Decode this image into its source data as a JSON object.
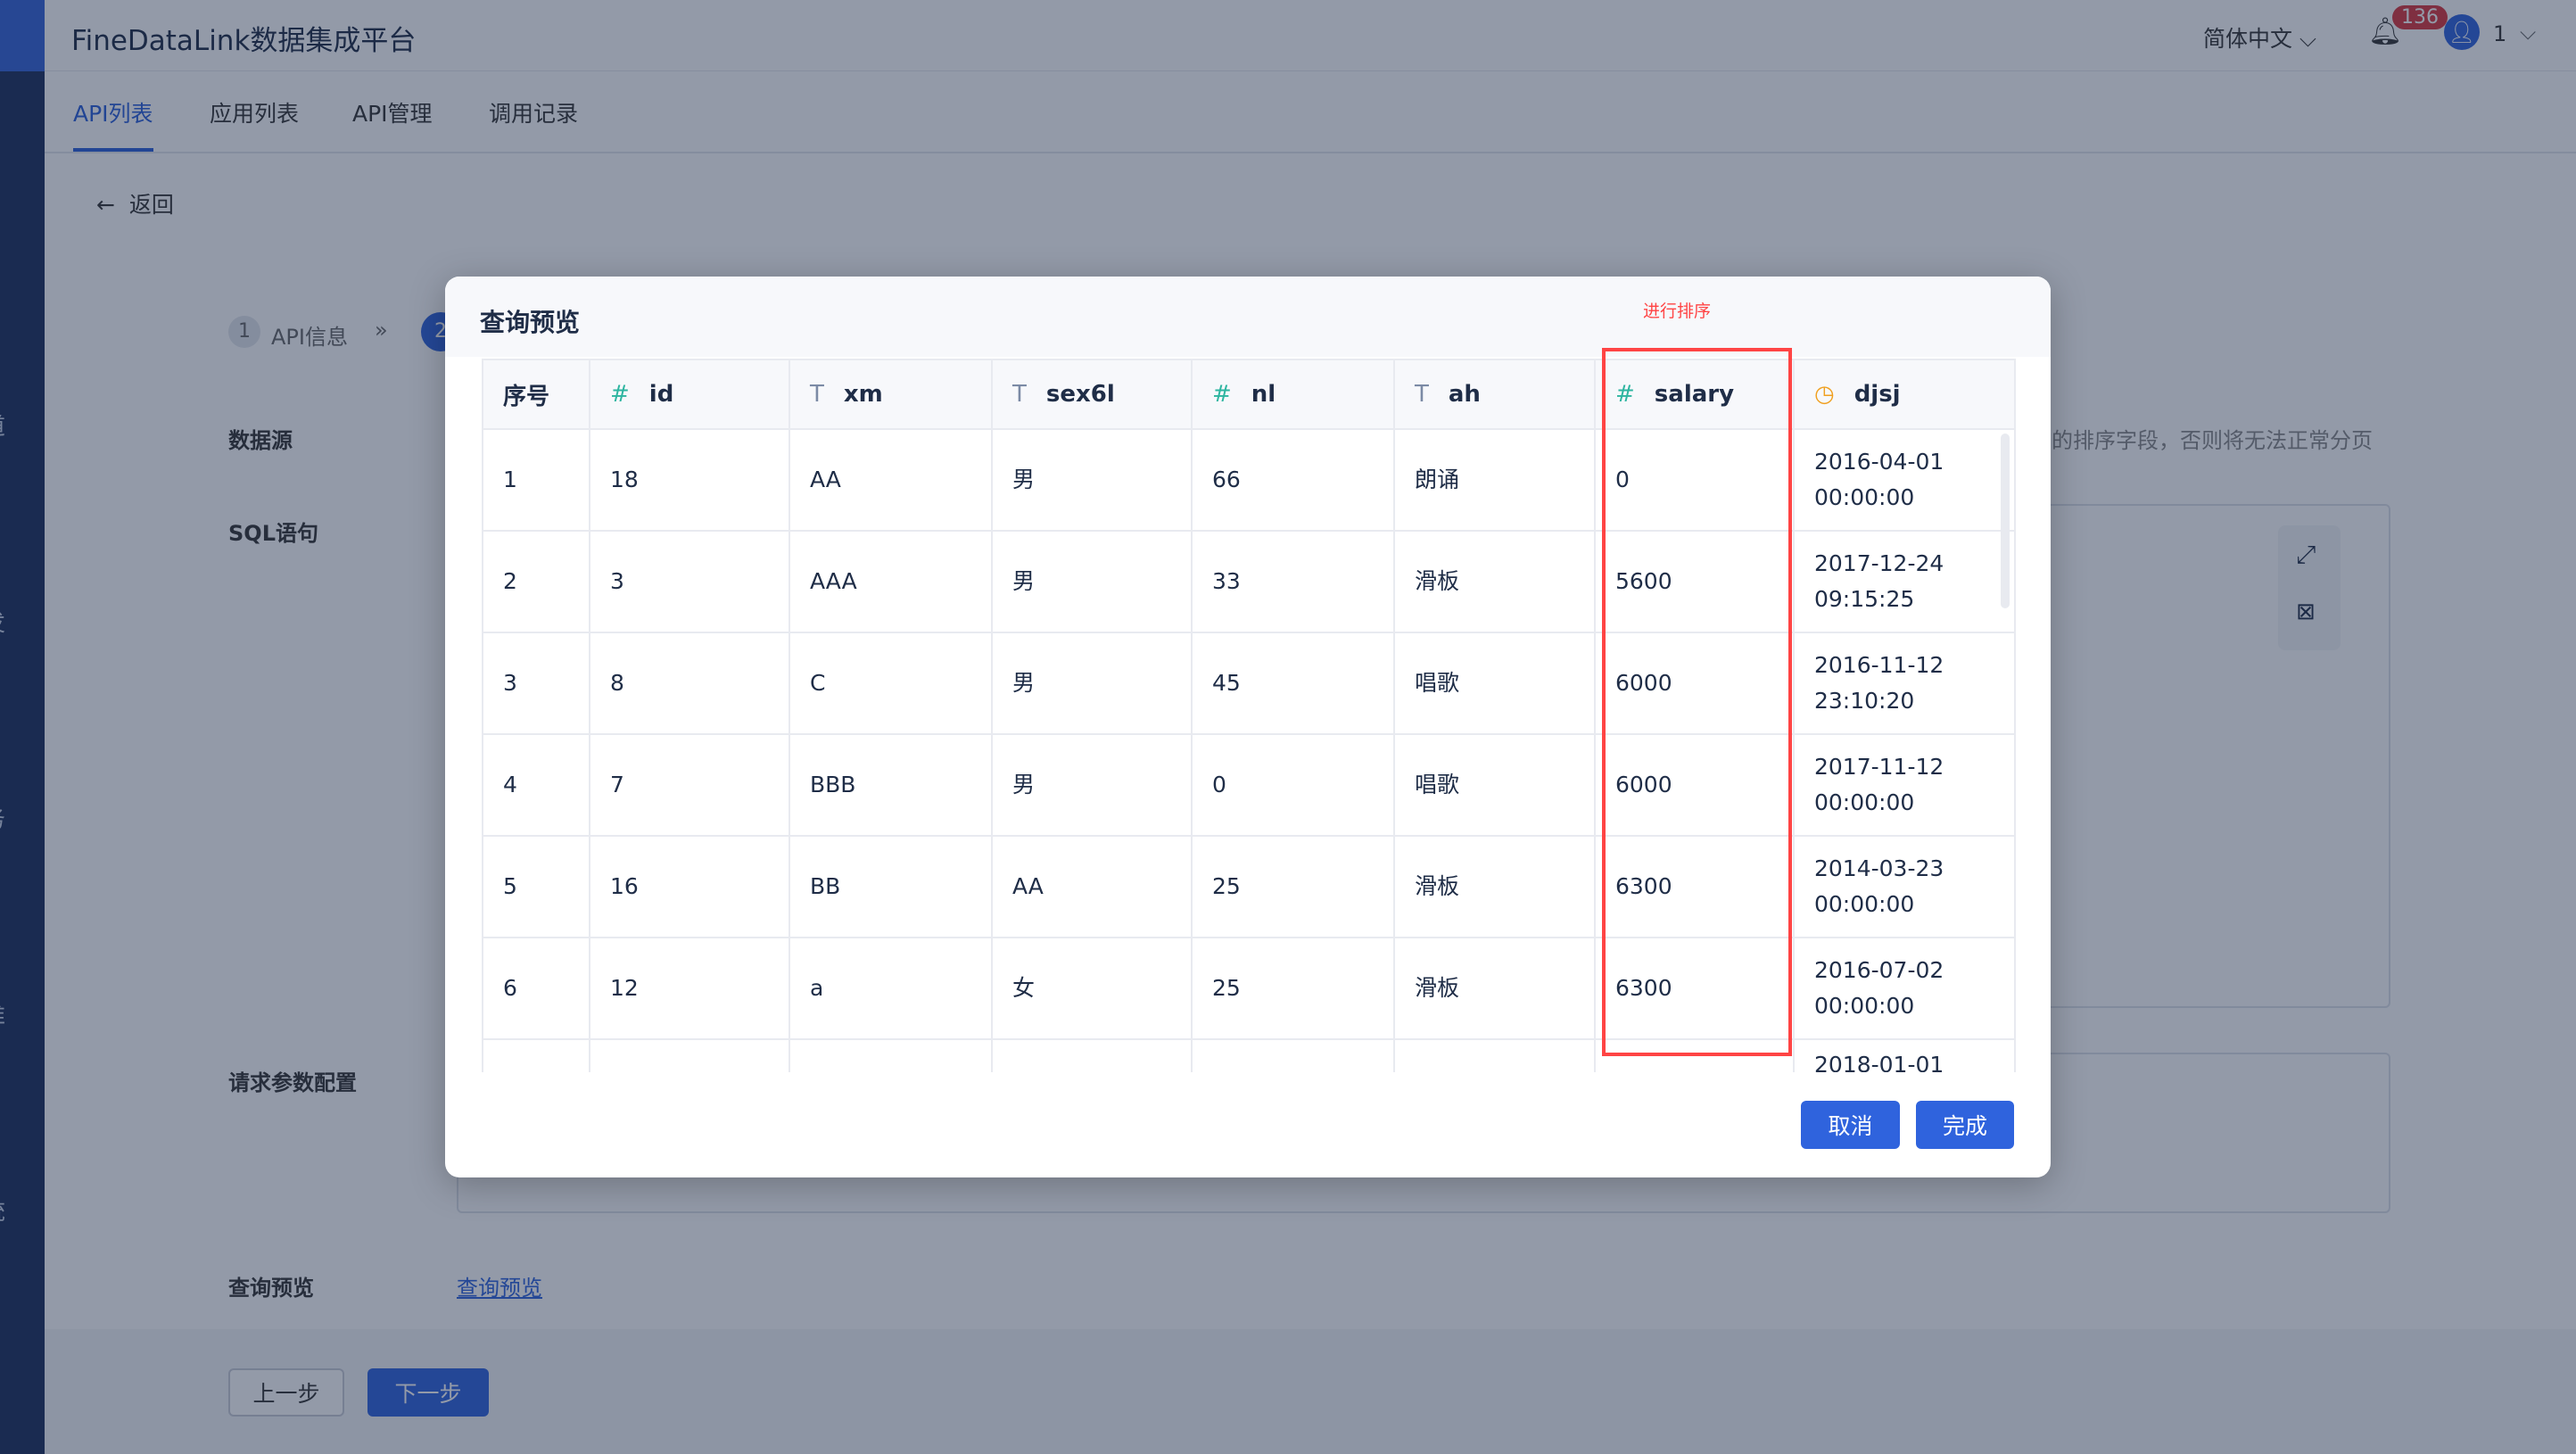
{
  "app": {
    "title": "FineDataLink数据集成平台",
    "language": "简体中文",
    "notification_count": "136",
    "user": "1"
  },
  "sidebar": {
    "items": [
      "道",
      "发",
      "务",
      "维",
      "统"
    ]
  },
  "tabs": [
    {
      "label": "API列表",
      "active": true
    },
    {
      "label": "应用列表"
    },
    {
      "label": "API管理"
    },
    {
      "label": "调用记录"
    }
  ],
  "back_label": "返回",
  "steps": {
    "step1_num": "1",
    "step1_label": "API信息",
    "step2_num": "2"
  },
  "form": {
    "datasource_label": "数据源",
    "sql_label": "SQL语句",
    "params_label": "请求参数配置",
    "preview_label": "查询预览",
    "preview_link": "查询预览",
    "hint": "的排序字段，否则将无法正常分页"
  },
  "footer": {
    "prev": "上一步",
    "next": "下一步"
  },
  "modal": {
    "title": "查询预览",
    "annotation": "进行排序",
    "annotation_color": "#ff4444",
    "columns": [
      {
        "name": "序号",
        "type": ""
      },
      {
        "name": "id",
        "type": "number"
      },
      {
        "name": "xm",
        "type": "text"
      },
      {
        "name": "sex6l",
        "type": "text"
      },
      {
        "name": "nl",
        "type": "number"
      },
      {
        "name": "ah",
        "type": "text"
      },
      {
        "name": "salary",
        "type": "number"
      },
      {
        "name": "djsj",
        "type": "datetime"
      }
    ],
    "rows": [
      [
        "1",
        "18",
        "AA",
        "男",
        "66",
        "朗诵",
        "0",
        "2016-04-01 00:00:00"
      ],
      [
        "2",
        "3",
        "AAA",
        "男",
        "33",
        "滑板",
        "5600",
        "2017-12-24 09:15:25"
      ],
      [
        "3",
        "8",
        "C",
        "男",
        "45",
        "唱歌",
        "6000",
        "2016-11-12 23:10:20"
      ],
      [
        "4",
        "7",
        "BBB",
        "男",
        "0",
        "唱歌",
        "6000",
        "2017-11-12 00:00:00"
      ],
      [
        "5",
        "16",
        "BB",
        "AA",
        "25",
        "滑板",
        "6300",
        "2014-03-23 00:00:00"
      ],
      [
        "6",
        "12",
        "a",
        "女",
        "25",
        "滑板",
        "6300",
        "2016-07-02 00:00:00"
      ],
      [
        "",
        "",
        "",
        "",
        "",
        "",
        "",
        "2018-01-01"
      ]
    ],
    "cancel": "取消",
    "confirm": "完成",
    "accent": "#2f63dd"
  }
}
